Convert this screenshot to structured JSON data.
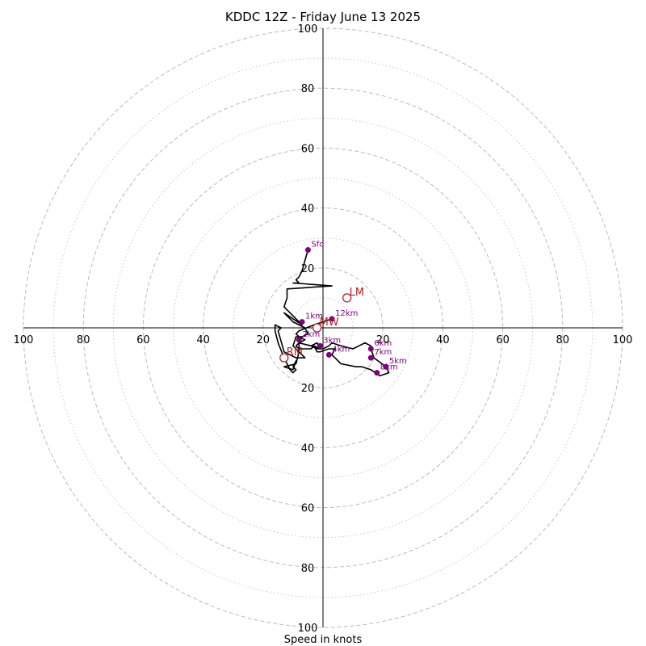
{
  "chart_data": {
    "type": "hodograph",
    "title": "KDDC 12Z - Friday June 13 2025",
    "xlabel": "Speed in knots",
    "range": [
      -100,
      100
    ],
    "ring_labels": [
      "20",
      "40",
      "60",
      "80",
      "100"
    ],
    "grid": true,
    "colors": {
      "trace": "#000000",
      "height_marker": "#800080",
      "vector_marker": "#b22222",
      "grid": "#bbbbbb"
    },
    "trace": [
      [
        -5,
        26
      ],
      [
        -7,
        19
      ],
      [
        -8,
        17
      ],
      [
        -9,
        16
      ],
      [
        -8,
        15
      ],
      [
        -10,
        15
      ],
      [
        3,
        14
      ],
      [
        -12,
        13
      ],
      [
        -12,
        10
      ],
      [
        -13,
        7
      ],
      [
        -8,
        2
      ],
      [
        -7,
        1
      ],
      [
        -13,
        5
      ],
      [
        -10,
        2
      ],
      [
        -6,
        0
      ],
      [
        -5,
        -2
      ],
      [
        -7,
        -3
      ],
      [
        -9,
        -3
      ],
      [
        -10,
        -6
      ],
      [
        -8,
        -8
      ],
      [
        -6,
        -10
      ],
      [
        -9,
        -10
      ],
      [
        -13,
        -8
      ],
      [
        -15,
        -1
      ],
      [
        -14,
        0
      ],
      [
        -16,
        1
      ],
      [
        -16,
        -1
      ],
      [
        -15,
        -5
      ],
      [
        -13,
        -10
      ],
      [
        -11,
        -14
      ],
      [
        -10,
        -15
      ],
      [
        -9,
        -14
      ],
      [
        -10,
        -13
      ],
      [
        -9,
        -11
      ],
      [
        -10,
        -14
      ],
      [
        -13,
        -13
      ],
      [
        -9,
        -12
      ],
      [
        -8,
        -8
      ],
      [
        -8,
        -5
      ],
      [
        -4,
        -6
      ],
      [
        -2,
        -5
      ],
      [
        -1,
        -7
      ],
      [
        -2,
        -7
      ],
      [
        -4,
        -6
      ],
      [
        -3,
        -6
      ],
      [
        -2,
        -8
      ],
      [
        -1,
        -8
      ],
      [
        2,
        -7
      ],
      [
        4,
        -7
      ],
      [
        3,
        -9
      ],
      [
        6,
        -12
      ],
      [
        11,
        -13
      ],
      [
        13,
        -13
      ],
      [
        16,
        -14
      ],
      [
        19,
        -16
      ],
      [
        22,
        -15
      ],
      [
        21,
        -13
      ],
      [
        17,
        -10
      ],
      [
        16,
        -7
      ],
      [
        16,
        -6
      ],
      [
        14,
        -5
      ],
      [
        12,
        -6
      ],
      [
        10,
        -7
      ],
      [
        6,
        -6
      ],
      [
        3,
        -5
      ],
      [
        2,
        -6
      ],
      [
        0,
        -7
      ],
      [
        -1,
        -7
      ],
      [
        -3,
        -6
      ],
      [
        -4,
        -7
      ],
      [
        -6,
        -7
      ],
      [
        -8,
        -7
      ],
      [
        -9,
        -6
      ],
      [
        -8,
        -5
      ],
      [
        -6,
        -4
      ],
      [
        -8,
        -3
      ],
      [
        -9,
        -2
      ],
      [
        -8,
        -1
      ],
      [
        -3,
        1
      ],
      [
        0,
        2
      ],
      [
        3,
        3
      ]
    ],
    "height_markers": [
      {
        "label": "Sfc",
        "u": -5,
        "v": 26
      },
      {
        "label": "1km",
        "u": -7,
        "v": 2
      },
      {
        "label": "2km",
        "u": -8,
        "v": -4
      },
      {
        "label": "3km",
        "u": -1,
        "v": -6
      },
      {
        "label": "4km",
        "u": 2,
        "v": -9
      },
      {
        "label": "5km",
        "u": 21,
        "v": -13
      },
      {
        "label": "6km",
        "u": 16,
        "v": -7
      },
      {
        "label": "7km",
        "u": 16,
        "v": -10
      },
      {
        "label": "8km",
        "u": 18,
        "v": -15
      },
      {
        "label": "12km",
        "u": 3,
        "v": 3
      }
    ],
    "vector_markers": [
      {
        "label": "LM",
        "u": 8,
        "v": 10
      },
      {
        "label": "MW",
        "u": -2,
        "v": 0
      },
      {
        "label": "RM",
        "u": -13,
        "v": -10
      }
    ]
  }
}
